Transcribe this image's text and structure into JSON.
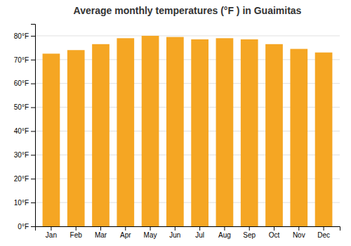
{
  "chart_data": {
    "type": "bar",
    "title": "Average monthly temperatures (°F ) in Guaimitas",
    "categories": [
      "Jan",
      "Feb",
      "Mar",
      "Apr",
      "May",
      "Jun",
      "Jul",
      "Aug",
      "Sep",
      "Oct",
      "Nov",
      "Dec"
    ],
    "values": [
      72.5,
      74.0,
      76.5,
      79.0,
      80.0,
      79.5,
      78.5,
      79.0,
      78.5,
      76.5,
      74.5,
      73.0
    ],
    "color": "#F5A623",
    "ylim": [
      0,
      85
    ],
    "yticks": [
      {
        "value": 0,
        "label": "0°F"
      },
      {
        "value": 10,
        "label": "10°F"
      },
      {
        "value": 20,
        "label": "20°F"
      },
      {
        "value": 30,
        "label": "30°F"
      },
      {
        "value": 40,
        "label": "40°F"
      },
      {
        "value": 50,
        "label": "50°F"
      },
      {
        "value": 60,
        "label": "60°F"
      },
      {
        "value": 70,
        "label": "70°F"
      },
      {
        "value": 80,
        "label": "80°F"
      }
    ],
    "grid": true
  }
}
